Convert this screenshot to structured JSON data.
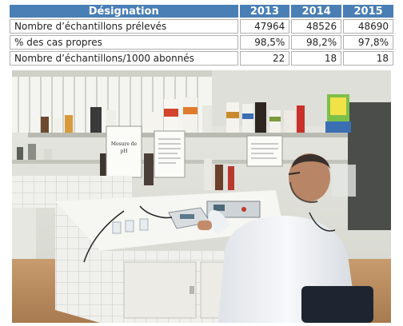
{
  "table": {
    "header": [
      "Désignation",
      "2013",
      "2014",
      "2015"
    ],
    "rows": [
      {
        "label": "Nombre d’échantillons prélevés",
        "values": [
          "47964",
          "48526",
          "48690"
        ]
      },
      {
        "label": "% des cas propres",
        "values": [
          "98,5%",
          "98,2%",
          "97,8%"
        ]
      },
      {
        "label": "Nombre d’échantillons/1000 abonnés",
        "values": [
          "22",
          "18",
          "18"
        ]
      }
    ]
  },
  "photo": {
    "sign_text": [
      "Mesure de",
      "pH"
    ],
    "colors": {
      "lab_coat": "#f4f6f8",
      "bench_tile": "#f0f0ec",
      "floor": "#b98a5c",
      "header_blue": "#4a7fb5"
    }
  }
}
